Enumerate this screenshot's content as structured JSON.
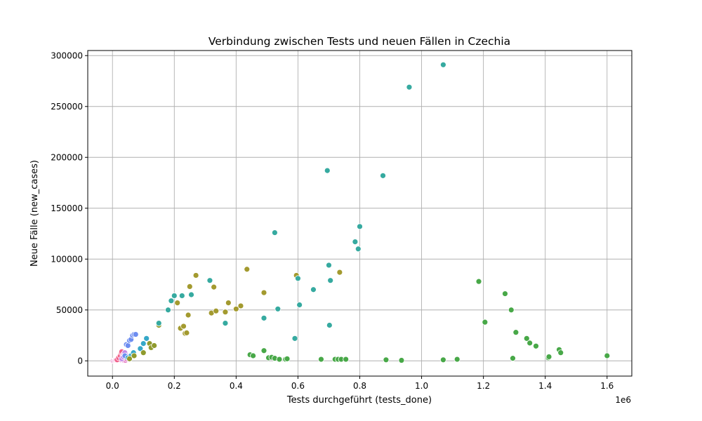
{
  "chart_data": {
    "type": "scatter",
    "title": "Verbindung zwischen Tests und neuen Fällen in Czechia",
    "xlabel": "Tests durchgeführt (tests_done)",
    "ylabel": "Neue Fälle (new_cases)",
    "x_offset_label": "1e6",
    "xlim": [
      -80000,
      1680000
    ],
    "ylim": [
      -15000,
      305000
    ],
    "x_ticks": [
      0,
      200000,
      400000,
      600000,
      800000,
      1000000,
      1200000,
      1400000,
      1600000
    ],
    "x_tick_labels": [
      "0.0",
      "0.2",
      "0.4",
      "0.6",
      "0.8",
      "1.0",
      "1.2",
      "1.4",
      "1.6"
    ],
    "y_ticks": [
      0,
      50000,
      100000,
      150000,
      200000,
      250000,
      300000
    ],
    "y_tick_labels": [
      "0",
      "50000",
      "100000",
      "150000",
      "200000",
      "250000",
      "300000"
    ],
    "grid": true,
    "legend": "none",
    "series": [
      {
        "color": "#e377c2",
        "x": [
          2000,
          5000,
          8000,
          10000,
          12000,
          15000,
          18000,
          20000,
          22000,
          25000,
          28000,
          30000,
          32000,
          35000,
          38000,
          40000,
          42000,
          45000
        ],
        "y": [
          100,
          300,
          500,
          800,
          1200,
          1500,
          2000,
          2500,
          3000,
          3500,
          1000,
          4500,
          2000,
          800,
          3000,
          1500,
          500,
          2000
        ]
      },
      {
        "color": "#f0608a",
        "x": [
          15000,
          20000,
          25000,
          28000,
          30000,
          35000
        ],
        "y": [
          1000,
          3000,
          5000,
          8000,
          9000,
          6000
        ]
      },
      {
        "color": "#c08ae8",
        "x": [
          30000,
          35000,
          38000,
          40000,
          45000
        ],
        "y": [
          2000,
          4000,
          6000,
          8000,
          5000
        ]
      },
      {
        "color": "#6d8df0",
        "x": [
          40000,
          45000,
          50000,
          55000,
          60000,
          65000,
          70000,
          75000
        ],
        "y": [
          5000,
          16000,
          15000,
          20000,
          21000,
          25000,
          26000,
          26000
        ]
      },
      {
        "color": "#36a8c8",
        "x": [
          50000,
          60000,
          68000,
          90000,
          100000,
          110000
        ],
        "y": [
          3000,
          5000,
          8000,
          12000,
          17000,
          22000
        ]
      },
      {
        "color": "#8f9a2e",
        "x": [
          55000,
          70000,
          100000,
          120000,
          125000,
          135000,
          150000
        ],
        "y": [
          2000,
          5000,
          8000,
          17000,
          13000,
          15000,
          35000
        ]
      },
      {
        "color": "#a39a2f",
        "x": [
          210000,
          220000,
          230000,
          235000,
          240000,
          245000,
          250000,
          270000,
          320000,
          328000,
          335000,
          365000,
          375000,
          400000,
          415000,
          435000,
          490000,
          595000,
          735000
        ],
        "y": [
          57000,
          32000,
          34000,
          27000,
          27500,
          45000,
          73000,
          84000,
          47000,
          72500,
          49000,
          48000,
          57000,
          51000,
          54000,
          90000,
          67000,
          84000,
          87000
        ]
      },
      {
        "color": "#36aaa0",
        "x": [
          150000,
          180000,
          190000,
          200000,
          225000,
          255000,
          315000,
          365000,
          490000,
          525000,
          535000,
          590000,
          600000,
          605000,
          650000,
          695000,
          700000,
          702000,
          705000,
          785000,
          795000,
          800000,
          875000,
          960000,
          1070000
        ],
        "y": [
          37000,
          50000,
          59000,
          64000,
          64000,
          65000,
          79000,
          37000,
          42000,
          126000,
          51000,
          22000,
          81000,
          55000,
          70000,
          187000,
          94000,
          35000,
          79000,
          117000,
          110000,
          132000,
          182000,
          269000,
          291000
        ]
      },
      {
        "color": "#48a848",
        "x": [
          445000,
          455000,
          490000,
          505000,
          515000,
          525000,
          540000,
          560000,
          565000,
          675000,
          720000,
          730000,
          740000,
          755000,
          885000,
          935000,
          1070000,
          1115000,
          1185000,
          1205000,
          1270000,
          1290000,
          1295000,
          1305000,
          1340000,
          1350000,
          1370000,
          1410000,
          1412000,
          1445000,
          1450000,
          1600000
        ],
        "y": [
          6000,
          5000,
          10000,
          3000,
          3500,
          2500,
          1500,
          1500,
          2000,
          1500,
          1500,
          1500,
          1500,
          1500,
          1000,
          500,
          1000,
          1500,
          78000,
          38000,
          66000,
          50000,
          2500,
          28000,
          22000,
          17500,
          14500,
          3000,
          4000,
          11000,
          8000,
          5000
        ]
      }
    ]
  }
}
